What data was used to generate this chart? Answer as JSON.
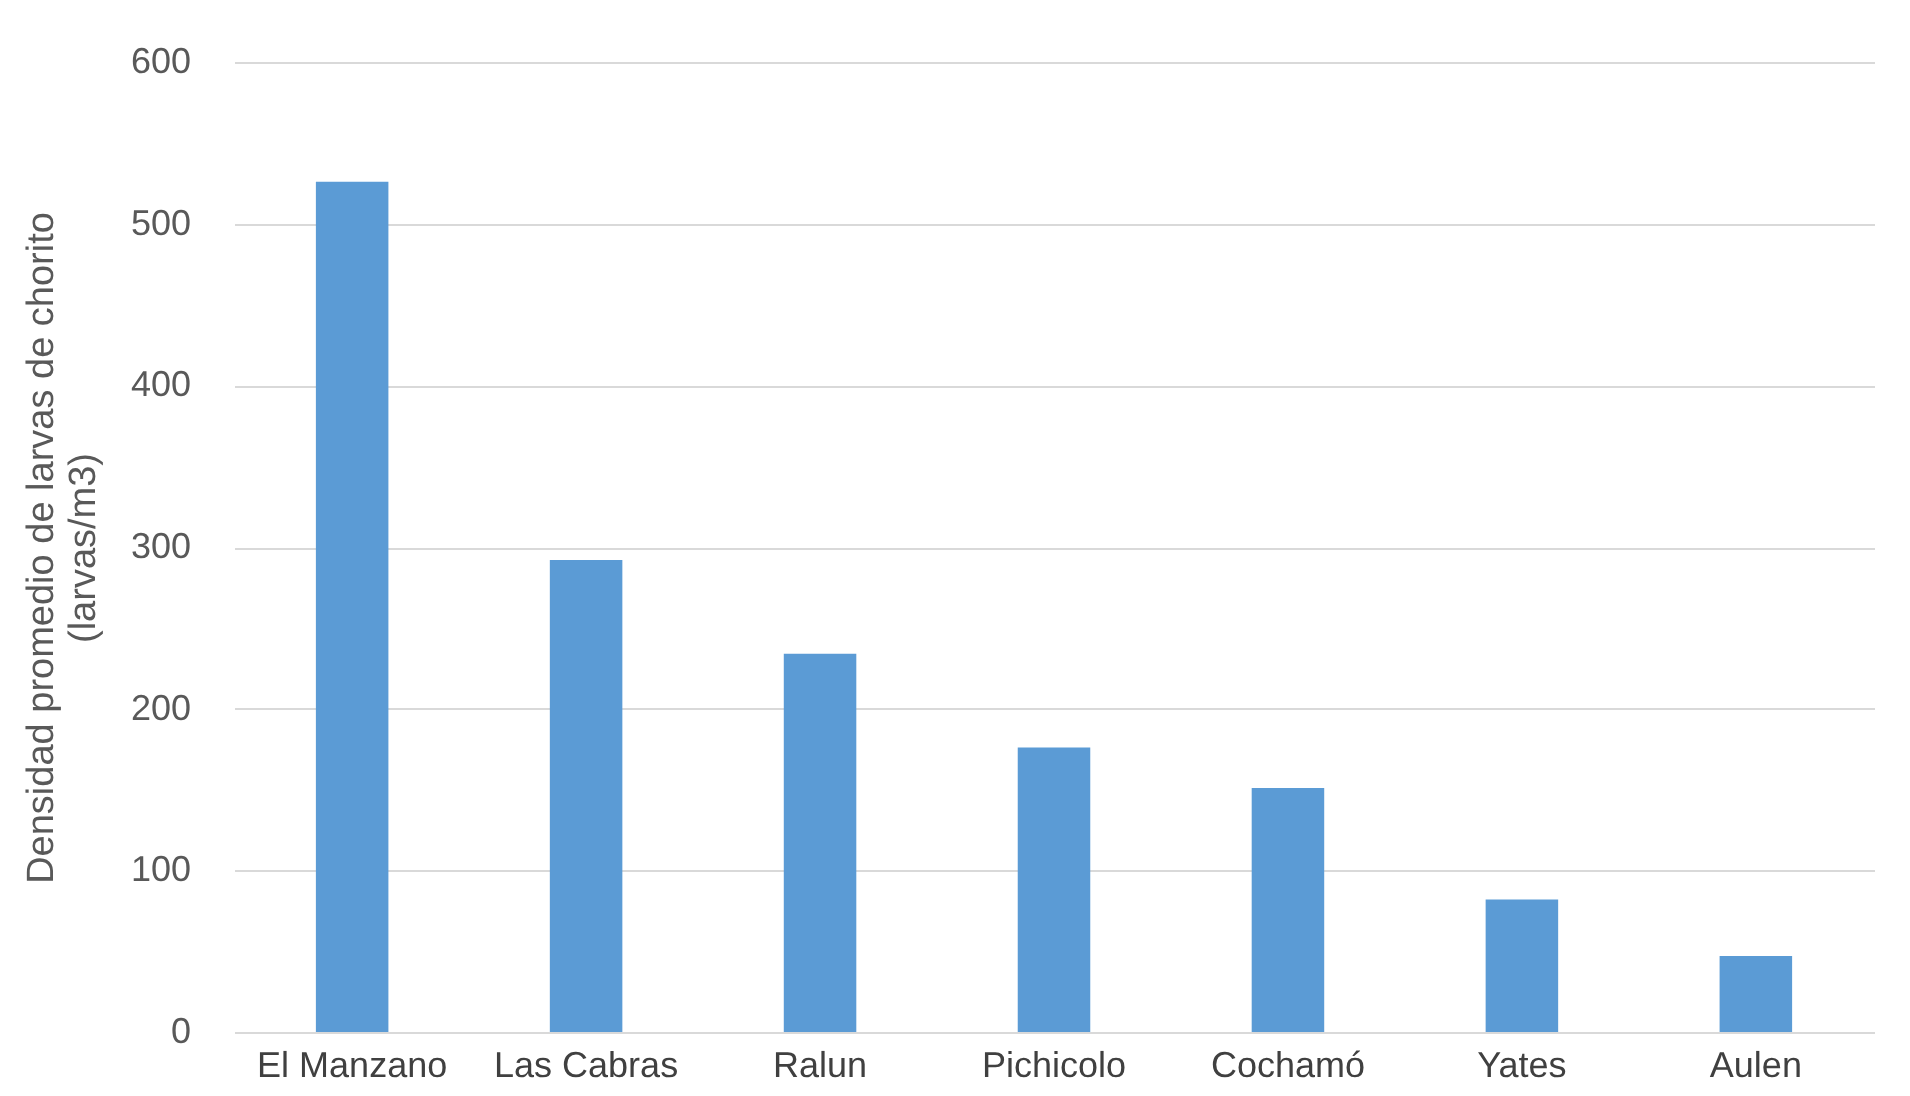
{
  "chart_data": {
    "type": "bar",
    "ylabel": "Densidad promedio de larvas de chorito\n(larvas/m3)",
    "categories": [
      "El Manzano",
      "Las Cabras",
      "Ralun",
      "Pichicolo",
      "Cochamó",
      "Yates",
      "Aulen"
    ],
    "values": [
      526,
      292,
      234,
      176,
      151,
      82,
      47
    ],
    "color": "#5b9bd5",
    "ylim": [
      0,
      600
    ],
    "yticks": [
      0,
      100,
      200,
      300,
      400,
      500,
      600
    ],
    "grid": "y"
  }
}
